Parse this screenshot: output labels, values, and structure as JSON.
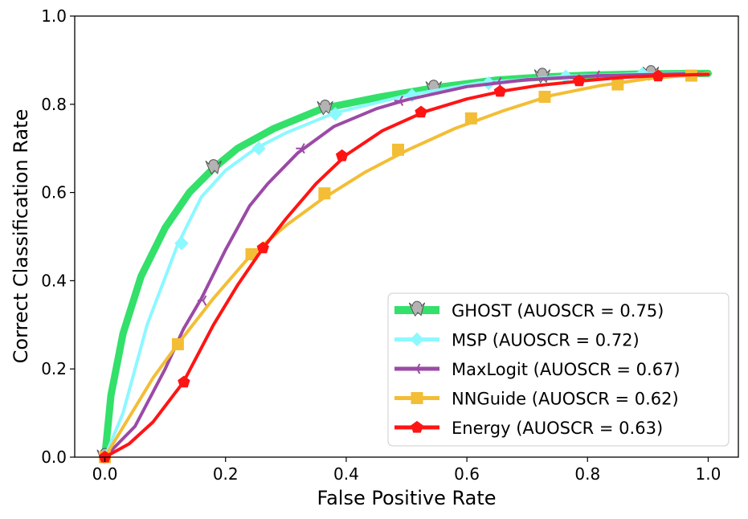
{
  "chart_data": {
    "type": "line",
    "title": "",
    "xlabel": "False Positive Rate",
    "ylabel": "Correct Classification Rate",
    "xlim": [
      -0.05,
      1.05
    ],
    "ylim": [
      0.0,
      1.0
    ],
    "xticks": [
      "0.0",
      "0.2",
      "0.4",
      "0.6",
      "0.8",
      "1.0"
    ],
    "yticks": [
      "0.0",
      "0.2",
      "0.4",
      "0.6",
      "0.8",
      "1.0"
    ],
    "grid": false,
    "legend_position": "lower-right",
    "series": [
      {
        "name": "GHOST (AUOSCR = 0.75)",
        "color": "#33e06a",
        "marker": "ghost",
        "x": [
          0.0,
          0.01,
          0.03,
          0.06,
          0.1,
          0.14,
          0.18,
          0.22,
          0.28,
          0.36,
          0.45,
          0.55,
          0.65,
          0.73,
          0.8,
          0.9,
          1.0
        ],
        "y": [
          0.0,
          0.14,
          0.28,
          0.41,
          0.52,
          0.6,
          0.655,
          0.7,
          0.745,
          0.79,
          0.815,
          0.838,
          0.855,
          0.862,
          0.866,
          0.869,
          0.87
        ],
        "markers_x": [
          0.0,
          0.18,
          0.365,
          0.545,
          0.725,
          0.905
        ],
        "markers_y": [
          0.0,
          0.655,
          0.79,
          0.835,
          0.862,
          0.868
        ]
      },
      {
        "name": "MSP (AUOSCR = 0.72)",
        "color": "#8cf8ff",
        "marker": "diamond",
        "x": [
          0.0,
          0.03,
          0.07,
          0.12,
          0.16,
          0.2,
          0.25,
          0.3,
          0.38,
          0.5,
          0.62,
          0.76,
          0.89,
          1.0
        ],
        "y": [
          0.0,
          0.1,
          0.3,
          0.48,
          0.59,
          0.65,
          0.7,
          0.735,
          0.78,
          0.82,
          0.848,
          0.863,
          0.869,
          0.87
        ],
        "markers_x": [
          0.0,
          0.127,
          0.255,
          0.382,
          0.509,
          0.636,
          0.764,
          0.891
        ],
        "markers_y": [
          0.0,
          0.485,
          0.7,
          0.778,
          0.82,
          0.848,
          0.863,
          0.869
        ]
      },
      {
        "name": "MaxLogit (AUOSCR = 0.67)",
        "color": "#9b4aa6",
        "marker": "tri_left",
        "x": [
          0.0,
          0.05,
          0.1,
          0.13,
          0.16,
          0.2,
          0.24,
          0.27,
          0.32,
          0.38,
          0.45,
          0.5,
          0.6,
          0.7,
          0.82,
          0.92,
          1.0
        ],
        "y": [
          0.0,
          0.07,
          0.2,
          0.29,
          0.36,
          0.47,
          0.57,
          0.62,
          0.69,
          0.75,
          0.79,
          0.81,
          0.84,
          0.856,
          0.865,
          0.868,
          0.87
        ],
        "markers_x": [
          0.0,
          0.163,
          0.326,
          0.489,
          0.652,
          0.815
        ],
        "markers_y": [
          0.0,
          0.355,
          0.7,
          0.808,
          0.85,
          0.865
        ]
      },
      {
        "name": "NNGuide (AUOSCR = 0.62)",
        "color": "#f3be35",
        "marker": "square",
        "x": [
          0.0,
          0.04,
          0.08,
          0.12,
          0.18,
          0.24,
          0.3,
          0.36,
          0.43,
          0.5,
          0.58,
          0.66,
          0.74,
          0.82,
          0.9,
          1.0
        ],
        "y": [
          0.0,
          0.09,
          0.18,
          0.255,
          0.36,
          0.455,
          0.525,
          0.585,
          0.645,
          0.695,
          0.745,
          0.785,
          0.82,
          0.842,
          0.858,
          0.87
        ],
        "markers_x": [
          0.0,
          0.121,
          0.243,
          0.364,
          0.486,
          0.607,
          0.729,
          0.85,
          0.972
        ],
        "markers_y": [
          0.0,
          0.256,
          0.46,
          0.598,
          0.697,
          0.768,
          0.817,
          0.845,
          0.865
        ]
      },
      {
        "name": "Energy (AUOSCR = 0.63)",
        "color": "#ff1414",
        "marker": "pentagon",
        "x": [
          0.0,
          0.04,
          0.08,
          0.13,
          0.18,
          0.22,
          0.26,
          0.3,
          0.35,
          0.4,
          0.46,
          0.53,
          0.6,
          0.66,
          0.72,
          0.79,
          0.86,
          0.92,
          1.0
        ],
        "y": [
          0.0,
          0.03,
          0.08,
          0.17,
          0.3,
          0.39,
          0.47,
          0.54,
          0.62,
          0.685,
          0.74,
          0.783,
          0.812,
          0.83,
          0.843,
          0.853,
          0.861,
          0.865,
          0.868
        ],
        "markers_x": [
          0.0,
          0.131,
          0.262,
          0.393,
          0.524,
          0.655,
          0.786,
          0.917
        ],
        "markers_y": [
          0.0,
          0.17,
          0.474,
          0.683,
          0.782,
          0.829,
          0.853,
          0.864
        ]
      }
    ]
  }
}
